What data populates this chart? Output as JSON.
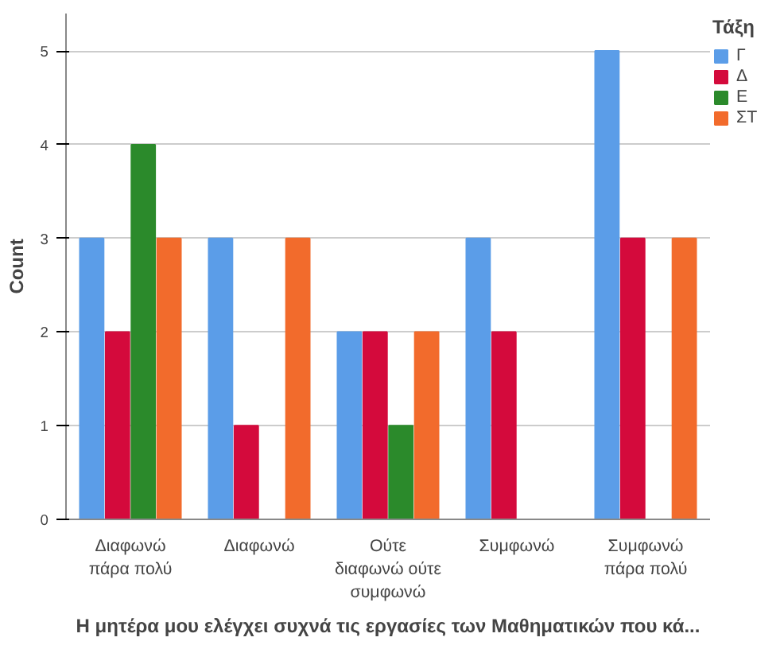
{
  "chart_data": {
    "type": "bar",
    "xlabel": "Η μητέρα μου ελέγχει συχνά τις εργασίες των Μαθηματικών που κά...",
    "ylabel": "Count",
    "legend_title": "Τάξη",
    "categories": [
      "Διαφωνώ\nπάρα πολύ",
      "Διαφωνώ",
      "Ούτε\nδιαφωνώ ούτε\nσυμφωνώ",
      "Συμφωνώ",
      "Συμφωνώ\nπάρα πολύ"
    ],
    "series": [
      {
        "name": "Γ",
        "color": "#5b9de8",
        "values": [
          3,
          3,
          2,
          3,
          5
        ]
      },
      {
        "name": "Δ",
        "color": "#d40a3c",
        "values": [
          2,
          1,
          2,
          2,
          3
        ]
      },
      {
        "name": "Ε",
        "color": "#2b8a2b",
        "values": [
          4,
          0,
          1,
          0,
          0
        ]
      },
      {
        "name": "ΣΤ",
        "color": "#f26b2c",
        "values": [
          3,
          3,
          2,
          0,
          3
        ]
      }
    ],
    "ylim": [
      0,
      5.4
    ],
    "yticks": [
      0,
      1,
      2,
      3,
      4,
      5
    ],
    "grid": "y",
    "legend": "top right"
  }
}
